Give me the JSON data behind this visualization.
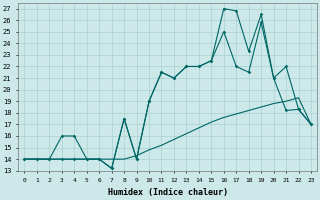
{
  "xlabel": "Humidex (Indice chaleur)",
  "bg_color": "#cce8e8",
  "grid_color": "#aad0d0",
  "line_color": "#006666",
  "xlim": [
    -0.5,
    23.5
  ],
  "ylim": [
    13,
    27.5
  ],
  "xticks": [
    0,
    1,
    2,
    3,
    4,
    5,
    6,
    7,
    8,
    9,
    10,
    11,
    12,
    13,
    14,
    15,
    16,
    17,
    18,
    19,
    20,
    21,
    22,
    23
  ],
  "yticks": [
    13,
    14,
    15,
    16,
    17,
    18,
    19,
    20,
    21,
    22,
    23,
    24,
    25,
    26,
    27
  ],
  "series1_x": [
    0,
    1,
    2,
    3,
    4,
    5,
    6,
    7,
    8,
    9,
    10,
    11,
    12,
    13,
    14,
    15,
    16,
    17,
    18,
    19,
    20,
    21,
    22,
    23
  ],
  "series1_y": [
    14,
    14,
    14,
    14,
    14,
    14,
    14,
    14,
    14,
    14.3,
    14.8,
    15.2,
    15.7,
    16.2,
    16.7,
    17.2,
    17.6,
    17.9,
    18.2,
    18.5,
    18.8,
    19.0,
    19.3,
    17.0
  ],
  "series2_x": [
    0,
    1,
    2,
    3,
    4,
    5,
    6,
    7,
    8,
    9,
    10,
    11,
    12,
    13,
    14,
    15,
    16,
    17,
    18,
    19,
    20,
    21,
    22,
    23
  ],
  "series2_y": [
    14,
    14,
    14,
    16,
    16,
    14,
    14,
    13.2,
    17.5,
    14,
    19,
    21.5,
    21,
    22,
    22,
    22.5,
    25,
    22,
    21.5,
    25.8,
    21,
    18.2,
    18.3,
    17
  ],
  "series3_x": [
    0,
    1,
    2,
    3,
    4,
    5,
    6,
    7,
    8,
    9,
    10,
    11,
    12,
    13,
    14,
    15,
    16,
    17,
    18,
    19,
    20,
    21,
    22,
    23
  ],
  "series3_y": [
    14,
    14,
    14,
    14,
    14,
    14,
    14,
    13.2,
    17.5,
    14,
    19,
    21.5,
    21,
    22,
    22,
    22.5,
    27,
    26.8,
    23.3,
    26.5,
    21,
    22,
    18.3,
    17
  ]
}
